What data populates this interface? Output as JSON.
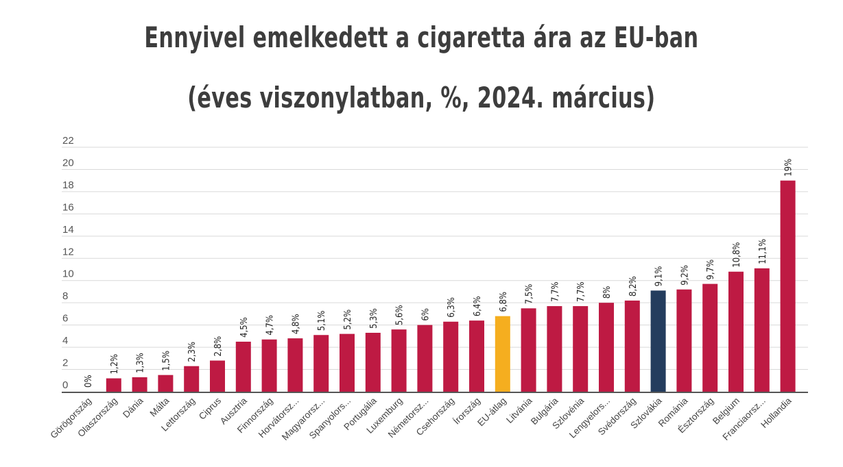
{
  "title_line1": "Ennyivel emelkedett a cigaretta ára az EU-ban",
  "title_line2": "(éves viszonylatban, %, 2024. március)",
  "colors": {
    "default": "#be1a43",
    "eu_average": "#f5ae1f",
    "highlight": "#243d5e",
    "grid": "#d9d9d9",
    "axis": "#555555"
  },
  "chart_data": {
    "type": "bar",
    "title": "Ennyivel emelkedett a cigaretta ára az EU-ban",
    "subtitle": "(éves viszonylatban, %, 2024. március)",
    "xlabel": "",
    "ylabel": "",
    "ylim": [
      0,
      22
    ],
    "yticks": [
      0,
      2,
      4,
      6,
      8,
      10,
      12,
      14,
      16,
      18,
      20,
      22
    ],
    "grid": true,
    "categories": [
      "Görögország",
      "Olaszország",
      "Dánia",
      "Málta",
      "Lettország",
      "Ciprus",
      "Ausztria",
      "Finnország",
      "Horvátorsz...",
      "Magyarorsz...",
      "Spanyolors...",
      "Portugália",
      "Luxemburg",
      "Németorsz...",
      "Csehország",
      "Írország",
      "EU-átlag",
      "Litvánia",
      "Bulgária",
      "Szlovénia",
      "Lengyelors...",
      "Svédország",
      "Szlovákia",
      "Románia",
      "Észtország",
      "Belgium",
      "Franciaorsz...",
      "Hollandia"
    ],
    "values": [
      0,
      1.2,
      1.3,
      1.5,
      2.3,
      2.8,
      4.5,
      4.7,
      4.8,
      5.1,
      5.2,
      5.3,
      5.6,
      6,
      6.3,
      6.4,
      6.8,
      7.5,
      7.7,
      7.7,
      8,
      8.2,
      9.1,
      9.2,
      9.7,
      10.8,
      11.1,
      19
    ],
    "data_labels": [
      "0%",
      "1,2%",
      "1,3%",
      "1,5%",
      "2,3%",
      "2,8%",
      "4,5%",
      "4,7%",
      "4,8%",
      "5,1%",
      "5,2%",
      "5,3%",
      "5,6%",
      "6%",
      "6,3%",
      "6,4%",
      "6,8%",
      "7,5%",
      "7,7%",
      "7,7%",
      "8%",
      "8,2%",
      "9,1%",
      "9,2%",
      "9,7%",
      "10,8%",
      "11,1%",
      "19%"
    ],
    "highlights": {
      "EU-átlag": "eu_average",
      "Szlovákia": "highlight"
    }
  }
}
